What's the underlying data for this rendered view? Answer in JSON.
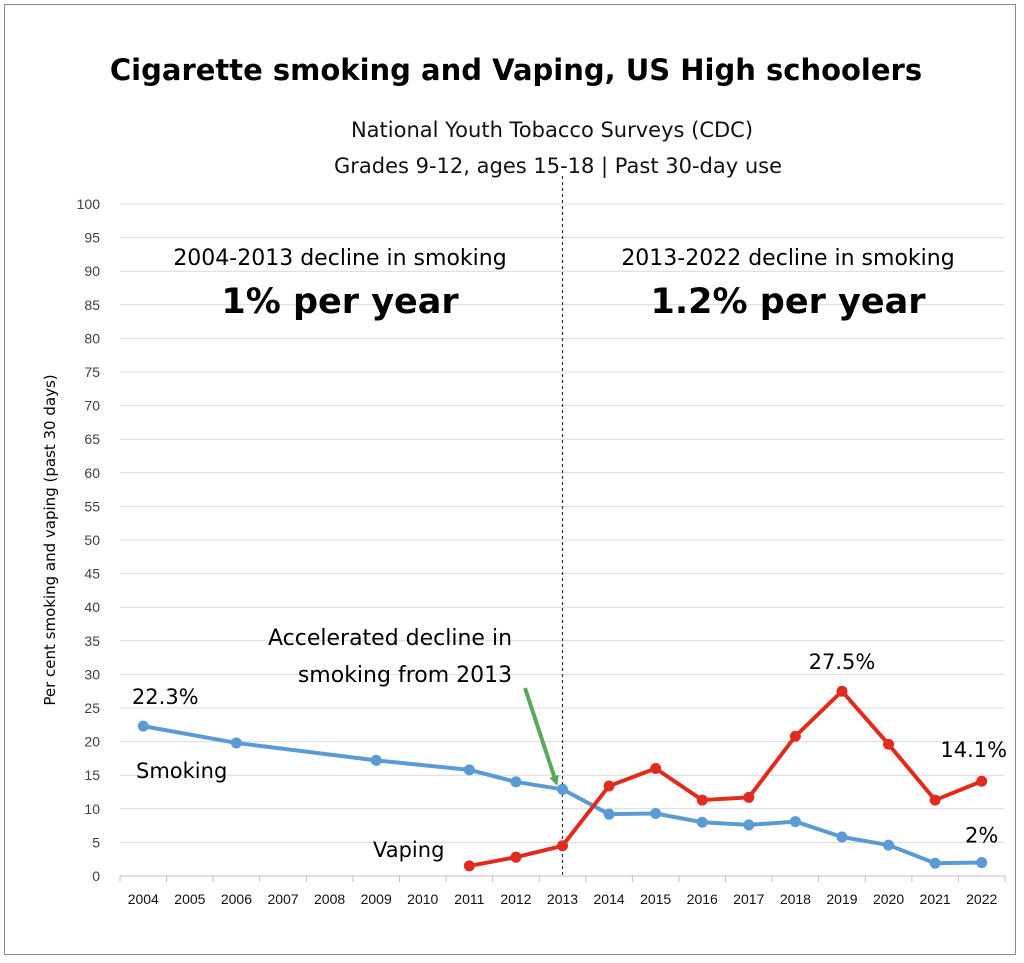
{
  "chart_data": {
    "type": "line",
    "title": "Cigarette smoking and Vaping, US High schoolers",
    "subtitle_lines": [
      "National Youth Tobacco Surveys (CDC)",
      "Grades 9-12, ages 15-18 | Past 30-day use"
    ],
    "ylabel": "Per cent smoking and vaping (past 30 days)",
    "xlabel": "",
    "ylim": [
      0,
      100
    ],
    "yticks": [
      0,
      5,
      10,
      15,
      20,
      25,
      30,
      35,
      40,
      45,
      50,
      55,
      60,
      65,
      70,
      75,
      80,
      85,
      90,
      95,
      100
    ],
    "grid": true,
    "categories": [
      "2004",
      "2005",
      "2006",
      "2007",
      "2008",
      "2009",
      "2010",
      "2011",
      "2012",
      "2013",
      "2014",
      "2015",
      "2016",
      "2017",
      "2018",
      "2019",
      "2020",
      "2021",
      "2022"
    ],
    "series": [
      {
        "name": "Smoking",
        "color": "#5b9bd5",
        "points": [
          {
            "x": "2004",
            "y": 22.3
          },
          {
            "x": "2006",
            "y": 19.8
          },
          {
            "x": "2009",
            "y": 17.2
          },
          {
            "x": "2011",
            "y": 15.8
          },
          {
            "x": "2012",
            "y": 14.0
          },
          {
            "x": "2013",
            "y": 12.9
          },
          {
            "x": "2014",
            "y": 9.2
          },
          {
            "x": "2015",
            "y": 9.3
          },
          {
            "x": "2016",
            "y": 8.0
          },
          {
            "x": "2017",
            "y": 7.6
          },
          {
            "x": "2018",
            "y": 8.1
          },
          {
            "x": "2019",
            "y": 5.8
          },
          {
            "x": "2020",
            "y": 4.6
          },
          {
            "x": "2021",
            "y": 1.9
          },
          {
            "x": "2022",
            "y": 2.0
          }
        ]
      },
      {
        "name": "Vaping",
        "color": "#e02b1f",
        "points": [
          {
            "x": "2011",
            "y": 1.5
          },
          {
            "x": "2012",
            "y": 2.8
          },
          {
            "x": "2013",
            "y": 4.5
          },
          {
            "x": "2014",
            "y": 13.4
          },
          {
            "x": "2015",
            "y": 16.0
          },
          {
            "x": "2016",
            "y": 11.3
          },
          {
            "x": "2017",
            "y": 11.7
          },
          {
            "x": "2018",
            "y": 20.8
          },
          {
            "x": "2019",
            "y": 27.5
          },
          {
            "x": "2020",
            "y": 19.6
          },
          {
            "x": "2021",
            "y": 11.3
          },
          {
            "x": "2022",
            "y": 14.1
          }
        ]
      }
    ],
    "data_labels": [
      {
        "series": "Smoking",
        "x": "2004",
        "text": "22.3%"
      },
      {
        "series": "Vaping",
        "x": "2019",
        "text": "27.5%"
      },
      {
        "series": "Vaping",
        "x": "2022",
        "text": "14.1%"
      },
      {
        "series": "Smoking",
        "x": "2022",
        "text": "2%"
      }
    ],
    "divider": {
      "x": "2013",
      "style": "dashed"
    },
    "annotations": {
      "left_heading": "2004-2013 decline in smoking",
      "left_rate": "1% per year",
      "right_heading": "2013-2022 decline in smoking",
      "right_rate": "1.2% per year",
      "arrow_note": [
        "Accelerated decline in",
        "smoking from 2013"
      ],
      "arrow_color": "#5aa85a"
    }
  }
}
